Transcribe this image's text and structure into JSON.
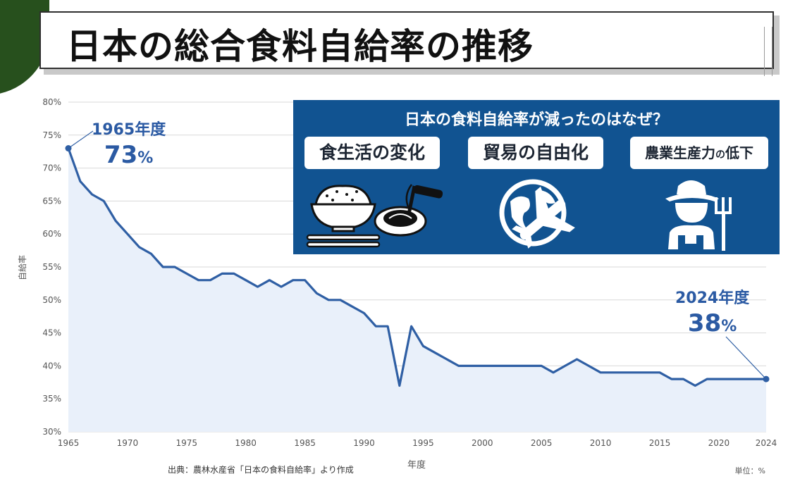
{
  "title": "日本の総合食料自給率の推移",
  "chart_data": {
    "type": "area",
    "x": [
      1965,
      1966,
      1967,
      1968,
      1969,
      1970,
      1971,
      1972,
      1973,
      1974,
      1975,
      1976,
      1977,
      1978,
      1979,
      1980,
      1981,
      1982,
      1983,
      1984,
      1985,
      1986,
      1987,
      1988,
      1989,
      1990,
      1991,
      1992,
      1993,
      1994,
      1995,
      1996,
      1997,
      1998,
      1999,
      2000,
      2001,
      2002,
      2003,
      2004,
      2005,
      2006,
      2007,
      2008,
      2009,
      2010,
      2011,
      2012,
      2013,
      2014,
      2015,
      2016,
      2017,
      2018,
      2019,
      2020,
      2021,
      2022,
      2023,
      2024
    ],
    "values": [
      73,
      68,
      66,
      65,
      62,
      60,
      58,
      57,
      55,
      55,
      54,
      53,
      53,
      54,
      54,
      53,
      52,
      53,
      52,
      53,
      53,
      51,
      50,
      50,
      49,
      48,
      46,
      46,
      37,
      46,
      43,
      42,
      41,
      40,
      40,
      40,
      40,
      40,
      40,
      40,
      40,
      39,
      40,
      41,
      40,
      39,
      39,
      39,
      39,
      39,
      39,
      38,
      38,
      37,
      38,
      38,
      38,
      38,
      38,
      38
    ],
    "xlabel": "年度",
    "ylabel": "自給率",
    "xlim": [
      1965,
      2024
    ],
    "ylim": [
      30,
      80
    ],
    "xticks": [
      "1965",
      "1970",
      "1975",
      "1980",
      "1985",
      "1990",
      "1995",
      "2000",
      "2005",
      "2010",
      "2015",
      "2020",
      "2024"
    ],
    "yticks": [
      "30%",
      "35%",
      "40%",
      "45%",
      "50%",
      "55%",
      "60%",
      "65%",
      "70%",
      "75%",
      "80%"
    ],
    "grid": true,
    "colors": {
      "line": "#2f5fa4",
      "fill": "#e9f0fa",
      "grid": "#d9d9d9"
    },
    "annotations": [
      {
        "year": "1965年度",
        "value_num": "73",
        "unit": "%",
        "x": 1965,
        "y": 73
      },
      {
        "year": "2024年度",
        "value_num": "38",
        "unit": "%",
        "x": 2024,
        "y": 38
      }
    ]
  },
  "info": {
    "heading": "日本の食料自給率が減ったのはなぜ？",
    "bg_color": "#115391",
    "items": [
      {
        "label": "食生活の変化",
        "icon": "rice-bowl-and-pasta-icon"
      },
      {
        "label": "貿易の自由化",
        "icon": "globe-airplane-icon"
      },
      {
        "label_a": "農業生産力",
        "label_b": "の",
        "label_c": "低下",
        "icon": "farmer-with-fork-icon"
      }
    ]
  },
  "footer": {
    "source": "出典：農林水産省「日本の食料自給率」より作成",
    "unit": "単位：%"
  }
}
